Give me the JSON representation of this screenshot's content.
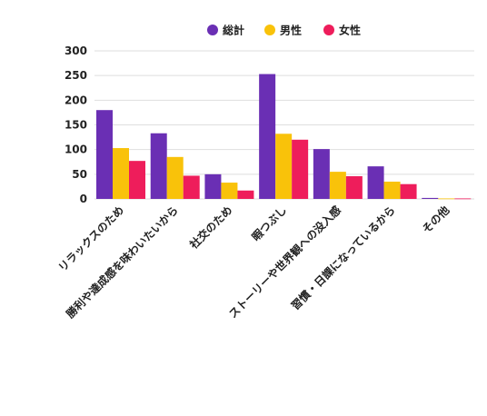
{
  "chart_data": {
    "type": "bar",
    "categories": [
      "リラックスのため",
      "勝利や達成感を味わいたいから",
      "社交のため",
      "暇つぶし",
      "ストーリーや世界観への没入感",
      "習慣・日課になっているから",
      "その他"
    ],
    "series": [
      {
        "name": "総計",
        "color": "#6a2fb4",
        "values": [
          180,
          133,
          50,
          253,
          101,
          66,
          2
        ]
      },
      {
        "name": "男性",
        "color": "#f9c20a",
        "values": [
          103,
          85,
          33,
          132,
          55,
          35,
          1
        ]
      },
      {
        "name": "女性",
        "color": "#ee1d5b",
        "values": [
          77,
          47,
          17,
          120,
          46,
          30,
          1
        ]
      }
    ],
    "yticks": [
      "0",
      "50",
      "100",
      "150",
      "200",
      "250",
      "300"
    ],
    "ylim": [
      0,
      300
    ],
    "grid": true,
    "legend_position": "top-center"
  }
}
